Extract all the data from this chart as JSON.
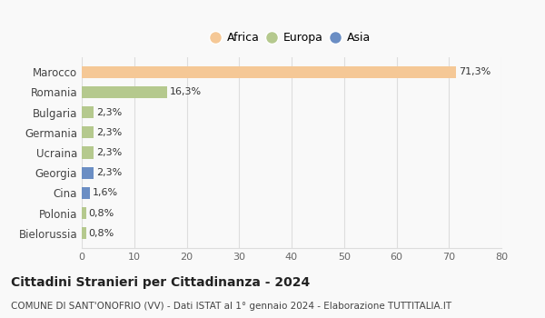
{
  "categories": [
    "Marocco",
    "Romania",
    "Bulgaria",
    "Germania",
    "Ucraina",
    "Georgia",
    "Cina",
    "Polonia",
    "Bielorussia"
  ],
  "values": [
    71.3,
    16.3,
    2.3,
    2.3,
    2.3,
    2.3,
    1.6,
    0.8,
    0.8
  ],
  "labels": [
    "71,3%",
    "16,3%",
    "2,3%",
    "2,3%",
    "2,3%",
    "2,3%",
    "1,6%",
    "0,8%",
    "0,8%"
  ],
  "colors": [
    "#f5c896",
    "#b5c98e",
    "#b5c98e",
    "#b5c98e",
    "#b5c98e",
    "#6b8ec4",
    "#6b8ec4",
    "#b5c98e",
    "#b5c98e"
  ],
  "legend": [
    {
      "label": "Africa",
      "color": "#f5c896"
    },
    {
      "label": "Europa",
      "color": "#b5c98e"
    },
    {
      "label": "Asia",
      "color": "#6b8ec4"
    }
  ],
  "xlim": [
    0,
    80
  ],
  "xticks": [
    0,
    10,
    20,
    30,
    40,
    50,
    60,
    70,
    80
  ],
  "title": "Cittadini Stranieri per Cittadinanza - 2024",
  "subtitle": "COMUNE DI SANT'ONOFRIO (VV) - Dati ISTAT al 1° gennaio 2024 - Elaborazione TUTTITALIA.IT",
  "background_color": "#f9f9f9",
  "grid_color": "#dddddd"
}
